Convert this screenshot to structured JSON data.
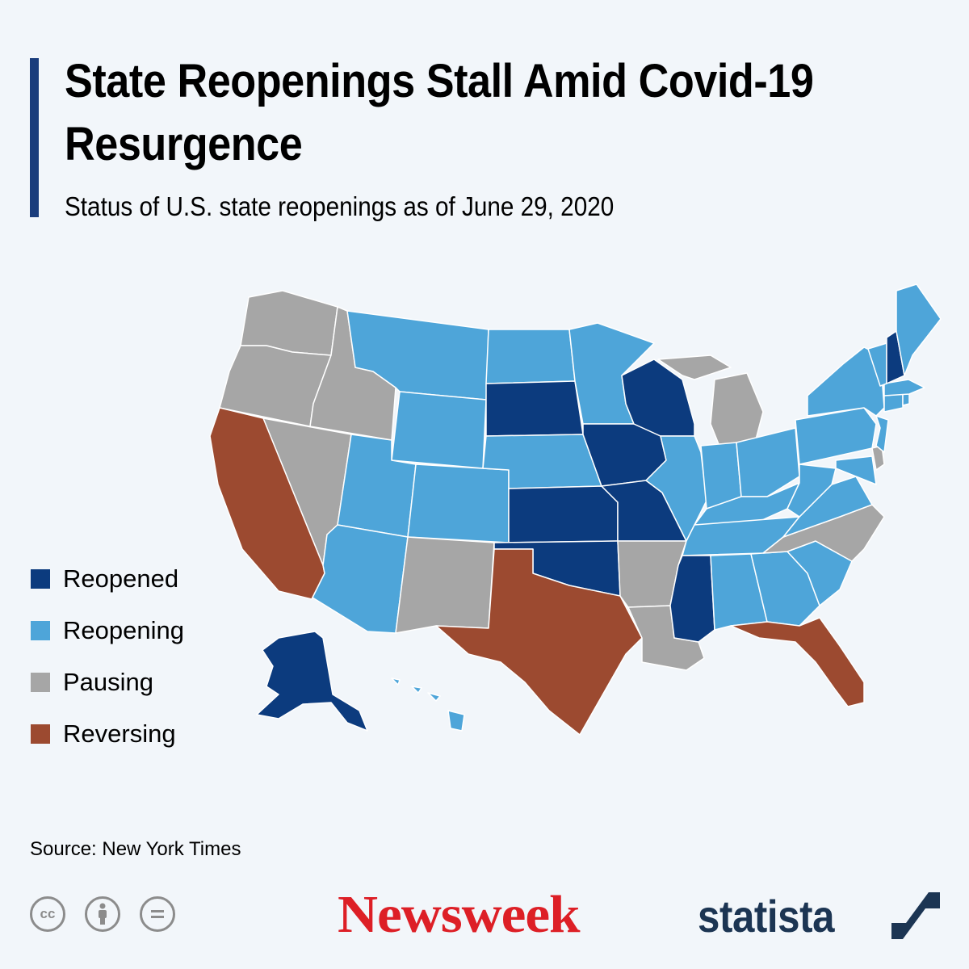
{
  "header": {
    "title": "State Reopenings Stall Amid Covid-19 Resurgence",
    "subtitle": "Status of U.S. state reopenings as of June 29, 2020"
  },
  "colors": {
    "accent": "#1a3d7c",
    "reopened": "#0c3b7e",
    "reopening": "#4ea5d9",
    "pausing": "#a6a6a6",
    "reversing": "#9c4a30",
    "newsweek_red": "#dd1f26",
    "statista_navy": "#1c3553"
  },
  "legend": [
    {
      "status": "reopened",
      "label": "Reopened"
    },
    {
      "status": "reopening",
      "label": "Reopening"
    },
    {
      "status": "pausing",
      "label": "Pausing"
    },
    {
      "status": "reversing",
      "label": "Reversing"
    }
  ],
  "map_data": {
    "states": {
      "WA": "pausing",
      "OR": "pausing",
      "ID": "pausing",
      "NV": "pausing",
      "CA": "reversing",
      "MT": "reopening",
      "WY": "reopening",
      "UT": "reopening",
      "AZ": "reopening",
      "CO": "reopening",
      "NM": "pausing",
      "ND": "reopening",
      "SD": "reopened",
      "NE": "reopening",
      "KS": "reopened",
      "OK": "reopened",
      "TX": "reversing",
      "MN": "reopening",
      "IA": "reopened",
      "MO": "reopened",
      "AR": "pausing",
      "LA": "pausing",
      "WI": "reopened",
      "IL": "reopening",
      "MI": "pausing",
      "IN": "reopening",
      "OH": "reopening",
      "KY": "reopening",
      "TN": "reopening",
      "MS": "reopened",
      "AL": "reopening",
      "GA": "reopening",
      "FL": "reversing",
      "SC": "reopening",
      "NC": "pausing",
      "VA": "reopening",
      "WV": "reopening",
      "MD": "reopening",
      "DE": "pausing",
      "PA": "reopening",
      "NJ": "reopening",
      "NY": "reopening",
      "CT": "reopening",
      "RI": "reopening",
      "MA": "reopening",
      "VT": "reopening",
      "NH": "reopened",
      "ME": "reopening",
      "AK": "reopened",
      "HI": "reopening"
    }
  },
  "footer": {
    "source": "Source: New York Times",
    "license_icons": [
      "cc-icon",
      "attribution-icon",
      "no-derivatives-icon"
    ],
    "newsweek": "Newsweek",
    "statista": "statista"
  }
}
